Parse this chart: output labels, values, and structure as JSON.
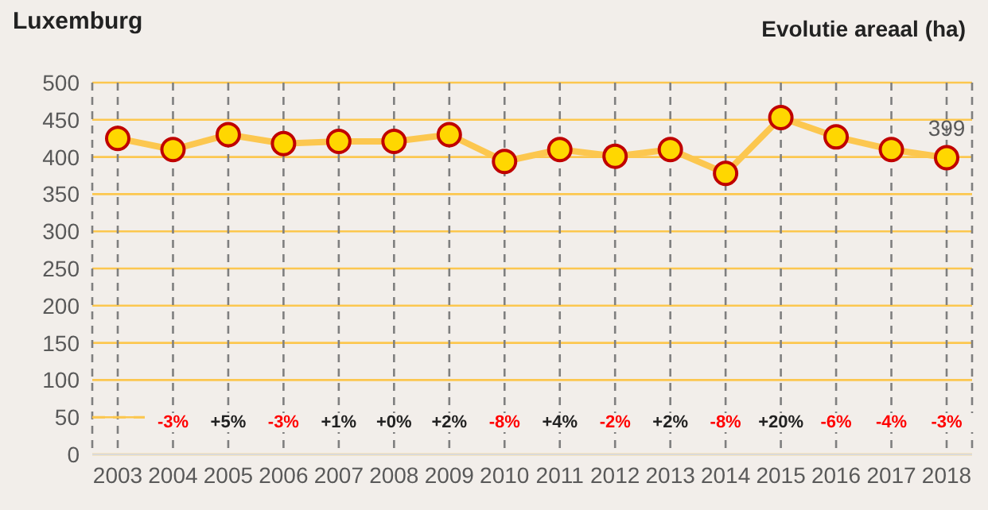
{
  "chart_data": {
    "type": "line",
    "title": "Luxemburg",
    "subtitle": "Evolutie areaal (ha)",
    "categories": [
      "2003",
      "2004",
      "2005",
      "2006",
      "2007",
      "2008",
      "2009",
      "2010",
      "2011",
      "2012",
      "2013",
      "2014",
      "2015",
      "2016",
      "2017",
      "2018"
    ],
    "series": [
      {
        "color": "#fcc74f",
        "values": [
          425,
          410,
          430,
          418,
          421,
          421,
          430,
          394,
          410,
          401,
          410,
          378,
          453,
          427,
          410,
          399
        ],
        "value_labels": [
          null,
          null,
          null,
          null,
          null,
          null,
          null,
          null,
          null,
          null,
          null,
          null,
          null,
          null,
          null,
          "399"
        ]
      }
    ],
    "ylim": [
      0,
      500
    ],
    "yticks": [
      0,
      50,
      100,
      150,
      200,
      250,
      300,
      350,
      400,
      450,
      500
    ],
    "grid": true,
    "marker": "circle",
    "legend": false,
    "ref_lines": [
      {
        "axis": "y",
        "value": 50,
        "line_style": "dashed",
        "color": "#fcc74f"
      }
    ],
    "annotations": [
      "-3%",
      "+5%",
      "-3%",
      "+1%",
      "+0%",
      "+2%",
      "-8%",
      "+4%",
      "-2%",
      "+2%",
      "-8%",
      "+20%",
      "-6%",
      "-4%",
      "-3%"
    ]
  }
}
